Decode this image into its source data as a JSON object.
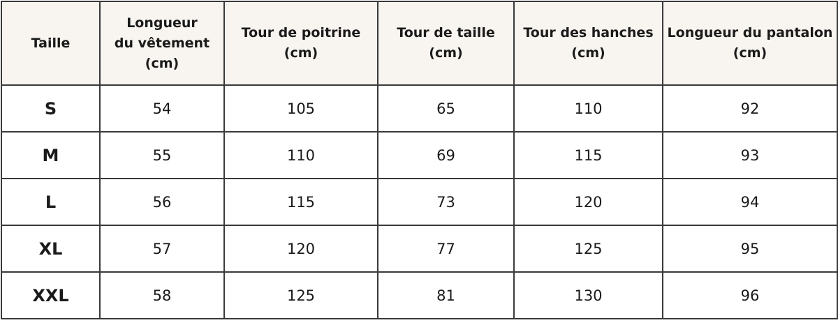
{
  "table": {
    "columns": [
      [
        "Taille"
      ],
      [
        "Longueur",
        "du vêtement",
        "(cm)"
      ],
      [
        "Tour de poitrine",
        "(cm)"
      ],
      [
        "Tour de taille",
        "(cm)"
      ],
      [
        "Tour des hanches",
        "(cm)"
      ],
      [
        "Longueur du pantalon",
        "(cm)"
      ]
    ],
    "rows": [
      [
        "S",
        54,
        105,
        65,
        110,
        92
      ],
      [
        "M",
        55,
        110,
        69,
        115,
        93
      ],
      [
        "L",
        56,
        115,
        73,
        120,
        94
      ],
      [
        "XL",
        57,
        120,
        77,
        125,
        95
      ],
      [
        "XXL",
        58,
        125,
        81,
        130,
        96
      ]
    ]
  }
}
